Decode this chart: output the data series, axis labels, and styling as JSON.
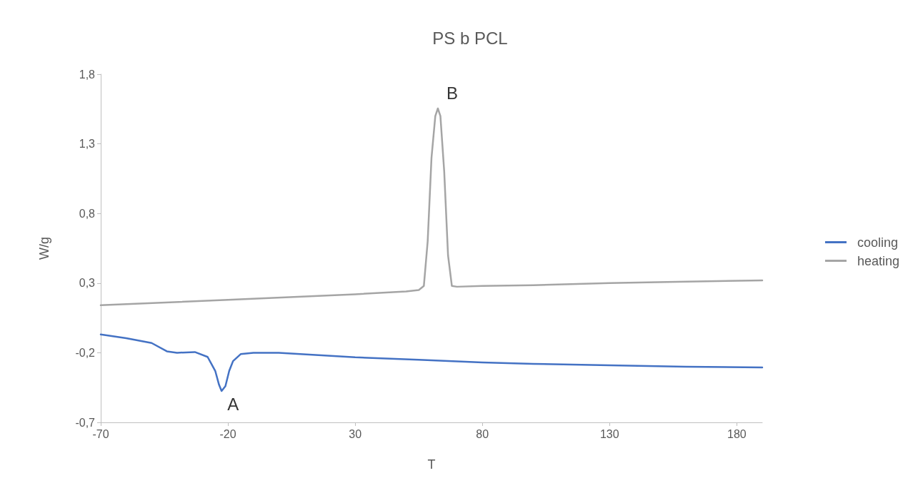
{
  "chart_data": {
    "type": "line",
    "title": "PS b PCL",
    "xlabel": "T",
    "ylabel": "W/g",
    "xlim": [
      -70,
      190
    ],
    "xticks": [
      -70,
      -20,
      30,
      80,
      130,
      180
    ],
    "ylim": [
      -0.7,
      1.8
    ],
    "yticks": [
      {
        "value": -0.7,
        "label": "-0,7"
      },
      {
        "value": -0.2,
        "label": "-0,2"
      },
      {
        "value": 0.3,
        "label": "0,3"
      },
      {
        "value": 0.8,
        "label": "0,8"
      },
      {
        "value": 1.3,
        "label": "1,3"
      },
      {
        "value": 1.8,
        "label": "1,8"
      }
    ],
    "grid": false,
    "legend": "right",
    "marker": "none",
    "line_style": "solid",
    "annotations": [
      {
        "text": "A",
        "x": -22.5,
        "y": -0.475
      },
      {
        "text": "B",
        "x": 62.5,
        "y": 1.554
      }
    ],
    "series": [
      {
        "name": "cooling",
        "color": "#4472c4",
        "x": [
          -70,
          -60,
          -50,
          -44,
          -40,
          -33,
          -28,
          -25,
          -23.5,
          -22.5,
          -21,
          -19.5,
          -18,
          -15,
          -10,
          0,
          30,
          55,
          80,
          100,
          130,
          160,
          190
        ],
        "values": [
          -0.069,
          -0.095,
          -0.13,
          -0.19,
          -0.2,
          -0.195,
          -0.23,
          -0.33,
          -0.43,
          -0.475,
          -0.44,
          -0.33,
          -0.26,
          -0.21,
          -0.2,
          -0.2,
          -0.233,
          -0.25,
          -0.27,
          -0.28,
          -0.29,
          -0.3,
          -0.305
        ]
      },
      {
        "name": "heating",
        "color": "#a5a5a5",
        "x": [
          -70,
          -20,
          30,
          50,
          55,
          57,
          58.5,
          60,
          61.5,
          62.5,
          63.5,
          65,
          66.5,
          68,
          70,
          80,
          100,
          130,
          160,
          190
        ],
        "values": [
          0.141,
          0.18,
          0.22,
          0.24,
          0.25,
          0.28,
          0.6,
          1.2,
          1.5,
          1.554,
          1.5,
          1.1,
          0.5,
          0.28,
          0.274,
          0.28,
          0.285,
          0.3,
          0.31,
          0.32
        ]
      }
    ]
  }
}
